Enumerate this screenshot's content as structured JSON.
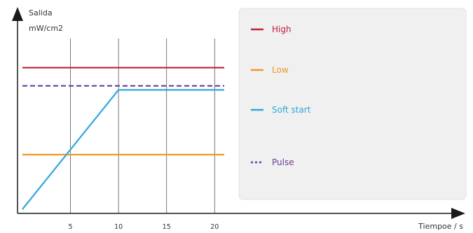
{
  "chart_data": {
    "type": "line",
    "ylabel_line1": "Salida",
    "ylabel_line2": "mW/cm2",
    "xlabel": "Tiempoe / s",
    "x_ticks": [
      5,
      10,
      15,
      20
    ],
    "xlim": [
      0,
      22
    ],
    "ylim": [
      0,
      100
    ],
    "grid_x": true,
    "legend_position": "right",
    "series": [
      {
        "name": "High",
        "color": "#c0203a",
        "dashed": false,
        "points": [
          [
            0,
            70
          ],
          [
            21,
            70
          ]
        ]
      },
      {
        "name": "Low",
        "color": "#f0962a",
        "dashed": false,
        "points": [
          [
            0,
            27
          ],
          [
            21,
            27
          ]
        ]
      },
      {
        "name": "Soft start",
        "color": "#2ea8dc",
        "dashed": false,
        "points": [
          [
            0,
            0
          ],
          [
            10,
            59
          ],
          [
            21,
            59
          ]
        ]
      },
      {
        "name": "Pulse",
        "color": "#6a3b9a",
        "dashed": true,
        "points": [
          [
            0,
            61
          ],
          [
            21,
            61
          ]
        ]
      }
    ]
  }
}
